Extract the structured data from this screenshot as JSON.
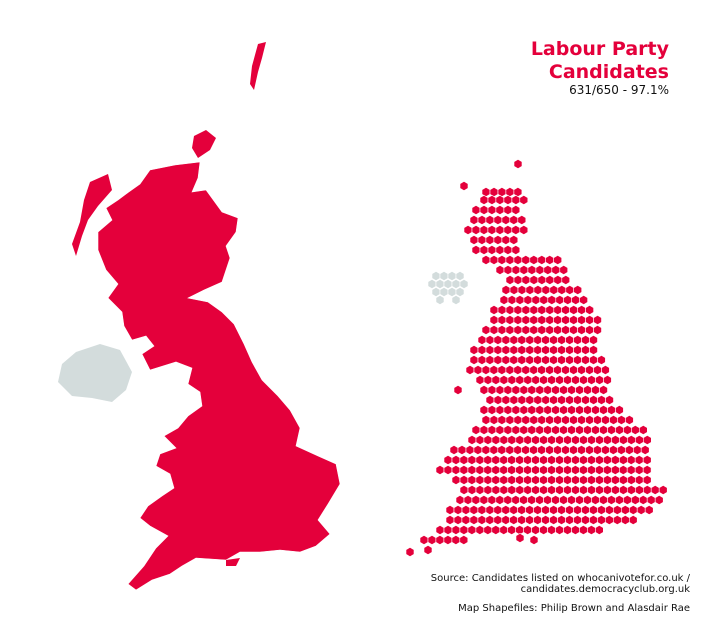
{
  "title": {
    "line1": "Labour Party",
    "line2": "Candidates"
  },
  "subtitle": "631/650 - 97.1%",
  "source": {
    "line1": "Source: Candidates listed on whocanivotefor.co.uk /",
    "line2": "candidates.democracyclub.org.uk"
  },
  "credit": "Map Shapefiles: Philip Brown and Alasdair Rae",
  "colors": {
    "party": "#e4003b",
    "northern_ireland": "#d3dcdc",
    "boundary": "#ffffff"
  },
  "map_data": {
    "total_seats": 650,
    "candidate_seats": 631,
    "percent": 97.1,
    "no_candidate_region": "Northern Ireland"
  }
}
